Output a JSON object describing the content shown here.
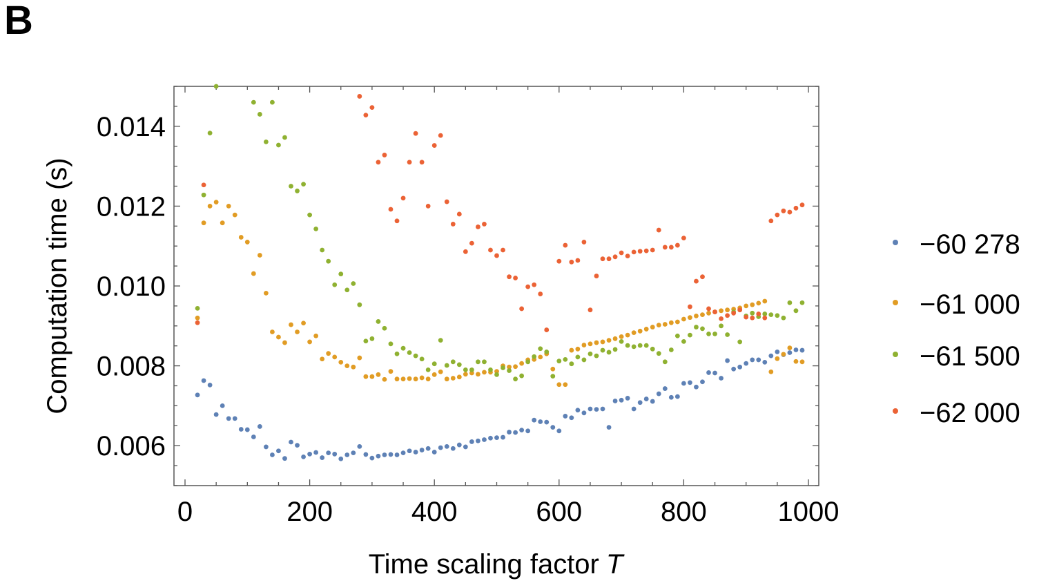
{
  "panel_label": "B",
  "chart_data": {
    "type": "scatter",
    "title": "",
    "xlabel": "Time scaling factor",
    "xlabel_var": "T",
    "ylabel": "Computation time  (s)",
    "xlim": [
      -20,
      1000
    ],
    "ylim": [
      0.005,
      0.015
    ],
    "x_ticks": [
      0,
      200,
      400,
      600,
      800,
      1000
    ],
    "y_ticks": [
      0.006,
      0.008,
      0.01,
      0.012,
      0.014
    ],
    "y_tick_labels": [
      "0.006",
      "0.008",
      "0.010",
      "0.012",
      "0.014"
    ],
    "x_tick_labels": [
      "0",
      "200",
      "400",
      "600",
      "800",
      "1000"
    ],
    "legend_position": "right",
    "grid": false,
    "series": [
      {
        "name": "−60 278",
        "color": "#5e81b5",
        "x": [
          20,
          30,
          40,
          50,
          60,
          70,
          80,
          90,
          100,
          110,
          120,
          130,
          140,
          150,
          160,
          170,
          180,
          190,
          200,
          210,
          220,
          230,
          240,
          250,
          260,
          270,
          280,
          290,
          300,
          310,
          320,
          330,
          340,
          350,
          360,
          370,
          380,
          390,
          400,
          410,
          420,
          430,
          440,
          450,
          460,
          470,
          480,
          490,
          500,
          510,
          520,
          530,
          540,
          550,
          560,
          570,
          580,
          590,
          600,
          610,
          620,
          630,
          640,
          650,
          660,
          670,
          680,
          690,
          700,
          710,
          720,
          730,
          740,
          750,
          760,
          770,
          780,
          790,
          800,
          810,
          820,
          830,
          840,
          850,
          860,
          870,
          880,
          890,
          900,
          910,
          920,
          930,
          940,
          950,
          960,
          970,
          980,
          990
        ],
        "y": [
          0.00727,
          0.00763,
          0.00752,
          0.00678,
          0.007,
          0.00668,
          0.00668,
          0.00641,
          0.0064,
          0.00622,
          0.00648,
          0.00597,
          0.00577,
          0.00587,
          0.00568,
          0.00609,
          0.00601,
          0.00572,
          0.00579,
          0.00583,
          0.0057,
          0.00582,
          0.00579,
          0.00567,
          0.00577,
          0.00582,
          0.00598,
          0.00578,
          0.00569,
          0.00574,
          0.00577,
          0.00578,
          0.00577,
          0.00582,
          0.00587,
          0.00584,
          0.00589,
          0.00593,
          0.00584,
          0.00595,
          0.00598,
          0.00593,
          0.00602,
          0.00597,
          0.0061,
          0.00612,
          0.00615,
          0.00619,
          0.0062,
          0.00621,
          0.00634,
          0.00633,
          0.00639,
          0.00637,
          0.00664,
          0.0066,
          0.00659,
          0.00646,
          0.00637,
          0.00674,
          0.0067,
          0.00689,
          0.00682,
          0.00692,
          0.00691,
          0.00692,
          0.00646,
          0.00712,
          0.00714,
          0.00719,
          0.00692,
          0.00708,
          0.00717,
          0.00711,
          0.0073,
          0.00743,
          0.00721,
          0.00723,
          0.00756,
          0.00758,
          0.00747,
          0.0076,
          0.00783,
          0.00782,
          0.00769,
          0.00813,
          0.00792,
          0.00797,
          0.00806,
          0.00815,
          0.00815,
          0.00809,
          0.00825,
          0.00835,
          0.00828,
          0.00833,
          0.0084,
          0.00839
        ]
      },
      {
        "name": "−61 000",
        "color": "#e19c24",
        "x": [
          20,
          30,
          40,
          50,
          60,
          70,
          80,
          90,
          100,
          110,
          120,
          130,
          140,
          150,
          160,
          170,
          180,
          190,
          200,
          210,
          220,
          230,
          240,
          250,
          260,
          270,
          280,
          290,
          300,
          310,
          320,
          330,
          340,
          350,
          360,
          370,
          380,
          390,
          400,
          410,
          420,
          430,
          440,
          450,
          460,
          470,
          480,
          490,
          500,
          510,
          520,
          530,
          540,
          550,
          560,
          570,
          580,
          590,
          600,
          610,
          620,
          630,
          640,
          650,
          660,
          670,
          680,
          690,
          700,
          710,
          720,
          730,
          740,
          750,
          760,
          770,
          780,
          790,
          800,
          810,
          820,
          830,
          840,
          850,
          860,
          870,
          880,
          890,
          900,
          910,
          920,
          930,
          940,
          950,
          960,
          970,
          980,
          990
        ],
        "y": [
          0.0092,
          0.01158,
          0.012,
          0.0121,
          0.01158,
          0.012,
          0.01178,
          0.01122,
          0.0111,
          0.01031,
          0.01077,
          0.00982,
          0.00885,
          0.00872,
          0.00858,
          0.00903,
          0.00885,
          0.00907,
          0.0086,
          0.00875,
          0.00817,
          0.00831,
          0.00822,
          0.00809,
          0.008,
          0.00797,
          0.0082,
          0.00773,
          0.00773,
          0.00778,
          0.00766,
          0.00786,
          0.00767,
          0.00767,
          0.00768,
          0.00767,
          0.0077,
          0.00767,
          0.00778,
          0.00785,
          0.00767,
          0.00769,
          0.00772,
          0.00779,
          0.00782,
          0.00779,
          0.00784,
          0.00784,
          0.00786,
          0.008,
          0.00797,
          0.00798,
          0.00806,
          0.00815,
          0.00816,
          0.00822,
          0.0083,
          0.00792,
          0.00753,
          0.00753,
          0.00839,
          0.00842,
          0.00852,
          0.00855,
          0.00858,
          0.0086,
          0.00864,
          0.00868,
          0.00873,
          0.00877,
          0.00883,
          0.00887,
          0.00892,
          0.00897,
          0.00902,
          0.00904,
          0.00908,
          0.0091,
          0.00917,
          0.00921,
          0.00925,
          0.00928,
          0.00932,
          0.00935,
          0.00938,
          0.0094,
          0.00942,
          0.00945,
          0.0095,
          0.00953,
          0.00957,
          0.00962,
          0.00785,
          0.00818,
          0.00829,
          0.00845,
          0.00811,
          0.0081
        ]
      },
      {
        "name": "−61 500",
        "color": "#8fb131",
        "x": [
          20,
          30,
          40,
          50,
          110,
          120,
          130,
          140,
          150,
          160,
          170,
          180,
          190,
          200,
          210,
          220,
          230,
          240,
          250,
          260,
          270,
          280,
          290,
          300,
          310,
          320,
          330,
          340,
          350,
          360,
          370,
          380,
          390,
          400,
          410,
          420,
          430,
          440,
          450,
          460,
          470,
          480,
          490,
          500,
          510,
          520,
          530,
          540,
          550,
          560,
          570,
          580,
          590,
          600,
          610,
          620,
          630,
          640,
          650,
          660,
          670,
          680,
          690,
          700,
          710,
          720,
          730,
          740,
          750,
          760,
          770,
          780,
          790,
          800,
          810,
          820,
          830,
          840,
          850,
          860,
          870,
          880,
          890,
          900,
          910,
          920,
          930,
          940,
          950,
          960,
          970,
          980,
          990
        ],
        "y": [
          0.00944,
          0.01228,
          0.01383,
          0.015,
          0.0146,
          0.0143,
          0.01361,
          0.0146,
          0.01353,
          0.01372,
          0.0125,
          0.01238,
          0.01255,
          0.01178,
          0.01143,
          0.0109,
          0.01062,
          0.01003,
          0.0103,
          0.0099,
          0.01006,
          0.00953,
          0.00862,
          0.00868,
          0.00911,
          0.00894,
          0.00855,
          0.0083,
          0.00844,
          0.00833,
          0.00825,
          0.00817,
          0.0079,
          0.00805,
          0.00864,
          0.00801,
          0.0081,
          0.00803,
          0.0079,
          0.0079,
          0.0081,
          0.0081,
          0.0079,
          0.00778,
          0.00795,
          0.00788,
          0.00767,
          0.00775,
          0.0081,
          0.00823,
          0.00843,
          0.00835,
          0.00774,
          0.00812,
          0.00816,
          0.00805,
          0.00822,
          0.00815,
          0.0083,
          0.00825,
          0.00839,
          0.00834,
          0.00841,
          0.00861,
          0.00851,
          0.00848,
          0.00851,
          0.00851,
          0.00842,
          0.00831,
          0.0081,
          0.0084,
          0.00875,
          0.00861,
          0.00877,
          0.00897,
          0.00893,
          0.0088,
          0.0088,
          0.009,
          0.00878,
          0.00935,
          0.0086,
          0.00925,
          0.00932,
          0.00923,
          0.0093,
          0.00928,
          0.00926,
          0.0092,
          0.00958,
          0.00938,
          0.00958
        ]
      },
      {
        "name": "−62 000",
        "color": "#eb6235",
        "x": [
          20,
          30,
          280,
          290,
          300,
          310,
          320,
          330,
          340,
          350,
          360,
          370,
          380,
          390,
          400,
          410,
          420,
          430,
          440,
          450,
          460,
          470,
          480,
          490,
          500,
          510,
          520,
          530,
          540,
          550,
          560,
          570,
          580,
          600,
          610,
          620,
          630,
          640,
          650,
          660,
          670,
          680,
          690,
          700,
          710,
          720,
          730,
          740,
          750,
          760,
          770,
          780,
          790,
          800,
          810,
          820,
          830,
          840,
          850,
          860,
          870,
          880,
          890,
          900,
          910,
          920,
          930,
          940,
          950,
          960,
          970,
          980,
          990
        ],
        "y": [
          0.00908,
          0.01253,
          0.01475,
          0.01428,
          0.01447,
          0.0131,
          0.01328,
          0.01192,
          0.01163,
          0.0122,
          0.0131,
          0.01382,
          0.0131,
          0.012,
          0.01352,
          0.01377,
          0.01211,
          0.01155,
          0.0118,
          0.01086,
          0.01107,
          0.01148,
          0.01155,
          0.0109,
          0.01076,
          0.0109,
          0.01023,
          0.0102,
          0.00943,
          0.00998,
          0.01003,
          0.0098,
          0.0089,
          0.01062,
          0.01102,
          0.0106,
          0.01064,
          0.0111,
          0.0094,
          0.01025,
          0.01068,
          0.01068,
          0.01073,
          0.01083,
          0.01075,
          0.01085,
          0.01087,
          0.01088,
          0.0109,
          0.0114,
          0.01097,
          0.01097,
          0.01102,
          0.0112,
          0.00948,
          0.01012,
          0.01023,
          0.00943,
          0.00935,
          0.00918,
          0.00926,
          0.00932,
          0.0094,
          0.00922,
          0.0092,
          0.0093,
          0.0092,
          0.01163,
          0.01178,
          0.01188,
          0.01185,
          0.01195,
          0.01203
        ]
      }
    ]
  }
}
